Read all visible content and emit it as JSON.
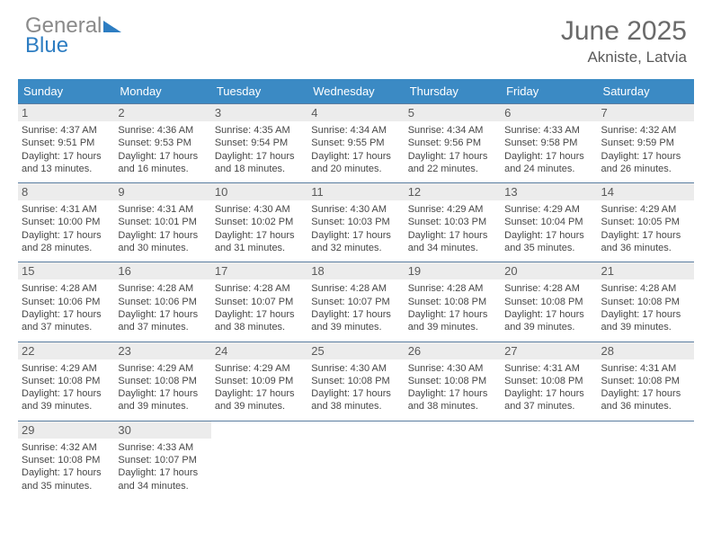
{
  "brand": {
    "word1": "General",
    "word2": "Blue",
    "tri_color": "#2d7dc2"
  },
  "title": "June 2025",
  "location": "Akniste, Latvia",
  "colors": {
    "header_bg": "#3b8ac4",
    "header_text": "#ffffff",
    "daynum_bg": "#ececec",
    "daynum_text": "#5a5a5a",
    "border": "#5a7da0",
    "body_text": "#474747"
  },
  "typography": {
    "title_fontsize": 30,
    "location_fontsize": 17,
    "dayhead_fontsize": 13,
    "daynum_fontsize": 13,
    "line_fontsize": 11
  },
  "day_headers": [
    "Sunday",
    "Monday",
    "Tuesday",
    "Wednesday",
    "Thursday",
    "Friday",
    "Saturday"
  ],
  "weeks": [
    [
      {
        "n": "1",
        "sr": "Sunrise: 4:37 AM",
        "ss": "Sunset: 9:51 PM",
        "d1": "Daylight: 17 hours",
        "d2": "and 13 minutes."
      },
      {
        "n": "2",
        "sr": "Sunrise: 4:36 AM",
        "ss": "Sunset: 9:53 PM",
        "d1": "Daylight: 17 hours",
        "d2": "and 16 minutes."
      },
      {
        "n": "3",
        "sr": "Sunrise: 4:35 AM",
        "ss": "Sunset: 9:54 PM",
        "d1": "Daylight: 17 hours",
        "d2": "and 18 minutes."
      },
      {
        "n": "4",
        "sr": "Sunrise: 4:34 AM",
        "ss": "Sunset: 9:55 PM",
        "d1": "Daylight: 17 hours",
        "d2": "and 20 minutes."
      },
      {
        "n": "5",
        "sr": "Sunrise: 4:34 AM",
        "ss": "Sunset: 9:56 PM",
        "d1": "Daylight: 17 hours",
        "d2": "and 22 minutes."
      },
      {
        "n": "6",
        "sr": "Sunrise: 4:33 AM",
        "ss": "Sunset: 9:58 PM",
        "d1": "Daylight: 17 hours",
        "d2": "and 24 minutes."
      },
      {
        "n": "7",
        "sr": "Sunrise: 4:32 AM",
        "ss": "Sunset: 9:59 PM",
        "d1": "Daylight: 17 hours",
        "d2": "and 26 minutes."
      }
    ],
    [
      {
        "n": "8",
        "sr": "Sunrise: 4:31 AM",
        "ss": "Sunset: 10:00 PM",
        "d1": "Daylight: 17 hours",
        "d2": "and 28 minutes."
      },
      {
        "n": "9",
        "sr": "Sunrise: 4:31 AM",
        "ss": "Sunset: 10:01 PM",
        "d1": "Daylight: 17 hours",
        "d2": "and 30 minutes."
      },
      {
        "n": "10",
        "sr": "Sunrise: 4:30 AM",
        "ss": "Sunset: 10:02 PM",
        "d1": "Daylight: 17 hours",
        "d2": "and 31 minutes."
      },
      {
        "n": "11",
        "sr": "Sunrise: 4:30 AM",
        "ss": "Sunset: 10:03 PM",
        "d1": "Daylight: 17 hours",
        "d2": "and 32 minutes."
      },
      {
        "n": "12",
        "sr": "Sunrise: 4:29 AM",
        "ss": "Sunset: 10:03 PM",
        "d1": "Daylight: 17 hours",
        "d2": "and 34 minutes."
      },
      {
        "n": "13",
        "sr": "Sunrise: 4:29 AM",
        "ss": "Sunset: 10:04 PM",
        "d1": "Daylight: 17 hours",
        "d2": "and 35 minutes."
      },
      {
        "n": "14",
        "sr": "Sunrise: 4:29 AM",
        "ss": "Sunset: 10:05 PM",
        "d1": "Daylight: 17 hours",
        "d2": "and 36 minutes."
      }
    ],
    [
      {
        "n": "15",
        "sr": "Sunrise: 4:28 AM",
        "ss": "Sunset: 10:06 PM",
        "d1": "Daylight: 17 hours",
        "d2": "and 37 minutes."
      },
      {
        "n": "16",
        "sr": "Sunrise: 4:28 AM",
        "ss": "Sunset: 10:06 PM",
        "d1": "Daylight: 17 hours",
        "d2": "and 37 minutes."
      },
      {
        "n": "17",
        "sr": "Sunrise: 4:28 AM",
        "ss": "Sunset: 10:07 PM",
        "d1": "Daylight: 17 hours",
        "d2": "and 38 minutes."
      },
      {
        "n": "18",
        "sr": "Sunrise: 4:28 AM",
        "ss": "Sunset: 10:07 PM",
        "d1": "Daylight: 17 hours",
        "d2": "and 39 minutes."
      },
      {
        "n": "19",
        "sr": "Sunrise: 4:28 AM",
        "ss": "Sunset: 10:08 PM",
        "d1": "Daylight: 17 hours",
        "d2": "and 39 minutes."
      },
      {
        "n": "20",
        "sr": "Sunrise: 4:28 AM",
        "ss": "Sunset: 10:08 PM",
        "d1": "Daylight: 17 hours",
        "d2": "and 39 minutes."
      },
      {
        "n": "21",
        "sr": "Sunrise: 4:28 AM",
        "ss": "Sunset: 10:08 PM",
        "d1": "Daylight: 17 hours",
        "d2": "and 39 minutes."
      }
    ],
    [
      {
        "n": "22",
        "sr": "Sunrise: 4:29 AM",
        "ss": "Sunset: 10:08 PM",
        "d1": "Daylight: 17 hours",
        "d2": "and 39 minutes."
      },
      {
        "n": "23",
        "sr": "Sunrise: 4:29 AM",
        "ss": "Sunset: 10:08 PM",
        "d1": "Daylight: 17 hours",
        "d2": "and 39 minutes."
      },
      {
        "n": "24",
        "sr": "Sunrise: 4:29 AM",
        "ss": "Sunset: 10:09 PM",
        "d1": "Daylight: 17 hours",
        "d2": "and 39 minutes."
      },
      {
        "n": "25",
        "sr": "Sunrise: 4:30 AM",
        "ss": "Sunset: 10:08 PM",
        "d1": "Daylight: 17 hours",
        "d2": "and 38 minutes."
      },
      {
        "n": "26",
        "sr": "Sunrise: 4:30 AM",
        "ss": "Sunset: 10:08 PM",
        "d1": "Daylight: 17 hours",
        "d2": "and 38 minutes."
      },
      {
        "n": "27",
        "sr": "Sunrise: 4:31 AM",
        "ss": "Sunset: 10:08 PM",
        "d1": "Daylight: 17 hours",
        "d2": "and 37 minutes."
      },
      {
        "n": "28",
        "sr": "Sunrise: 4:31 AM",
        "ss": "Sunset: 10:08 PM",
        "d1": "Daylight: 17 hours",
        "d2": "and 36 minutes."
      }
    ],
    [
      {
        "n": "29",
        "sr": "Sunrise: 4:32 AM",
        "ss": "Sunset: 10:08 PM",
        "d1": "Daylight: 17 hours",
        "d2": "and 35 minutes."
      },
      {
        "n": "30",
        "sr": "Sunrise: 4:33 AM",
        "ss": "Sunset: 10:07 PM",
        "d1": "Daylight: 17 hours",
        "d2": "and 34 minutes."
      },
      null,
      null,
      null,
      null,
      null
    ]
  ]
}
